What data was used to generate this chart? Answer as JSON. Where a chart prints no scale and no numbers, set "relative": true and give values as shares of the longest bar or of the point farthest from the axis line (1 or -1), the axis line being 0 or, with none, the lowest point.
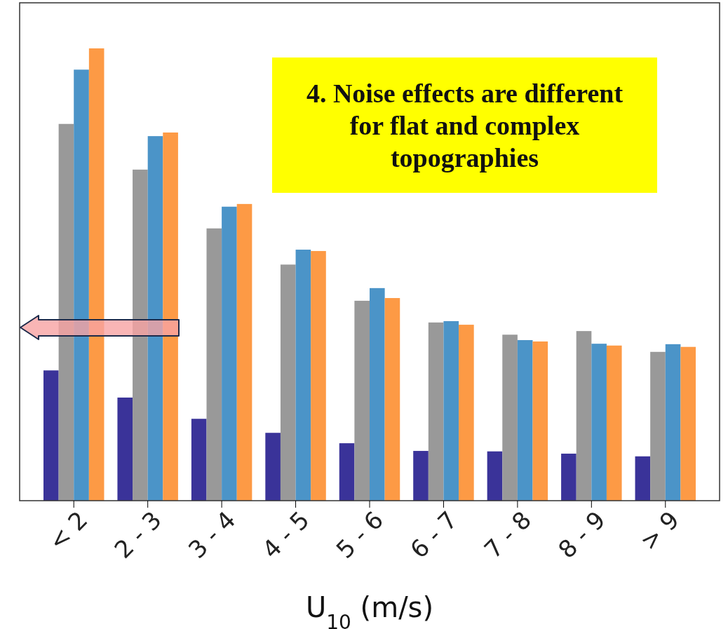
{
  "chart_data": {
    "type": "bar",
    "relative": true,
    "xlabel": "U$_{10}$ (m/s)",
    "categories": [
      "< 2",
      "2 - 3",
      "3 - 4",
      "4 - 5",
      "5 - 6",
      "6 - 7",
      "7 - 8",
      "8 - 9",
      "> 9"
    ],
    "series": [
      {
        "color": "#3a3399",
        "values": [
          0.288,
          0.228,
          0.181,
          0.15,
          0.127,
          0.11,
          0.109,
          0.104,
          0.098
        ]
      },
      {
        "color": "#999999",
        "values": [
          0.833,
          0.732,
          0.602,
          0.522,
          0.442,
          0.394,
          0.367,
          0.375,
          0.329
        ]
      },
      {
        "color": "#4b94c8",
        "values": [
          0.953,
          0.806,
          0.65,
          0.555,
          0.47,
          0.397,
          0.355,
          0.347,
          0.346
        ]
      },
      {
        "color": "#fd9a45",
        "values": [
          1,
          0.814,
          0.656,
          0.552,
          0.448,
          0.389,
          0.352,
          0.343,
          0.34
        ]
      }
    ],
    "annotations": [
      "4. Noise effects are different for flat and complex topographies"
    ]
  }
}
